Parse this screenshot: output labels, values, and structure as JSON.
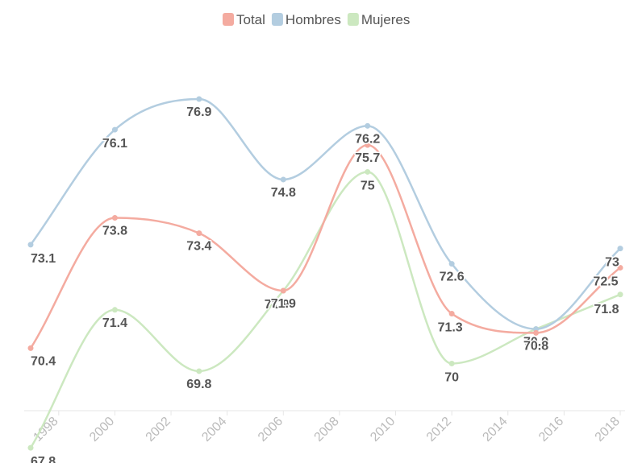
{
  "chart_data": {
    "type": "line",
    "title": "",
    "xlabel": "",
    "ylabel": "",
    "x": [
      1997,
      2000,
      2003,
      2006,
      2009,
      2012,
      2015,
      2018
    ],
    "xlim": [
      1997,
      2018
    ],
    "ylim": [
      69.4,
      76.9
    ],
    "xticks": [
      "1998",
      "2000",
      "2002",
      "2004",
      "2006",
      "2008",
      "2010",
      "2012",
      "2014",
      "2016",
      "2018"
    ],
    "legend_position": "top-center",
    "grid": false,
    "series": [
      {
        "name": "Total",
        "color": "#f4aba0",
        "values": [
          70.4,
          73.8,
          73.4,
          71.9,
          75.7,
          71.3,
          70.8,
          72.5
        ]
      },
      {
        "name": "Hombres",
        "color": "#b3cde0",
        "values": [
          73.1,
          76.1,
          76.9,
          74.8,
          76.2,
          72.6,
          70.9,
          73
        ]
      },
      {
        "name": "Mujeres",
        "color": "#cce8c0",
        "values": [
          67.8,
          71.4,
          69.8,
          71.9,
          75,
          70,
          70.9,
          71.8
        ]
      }
    ]
  }
}
